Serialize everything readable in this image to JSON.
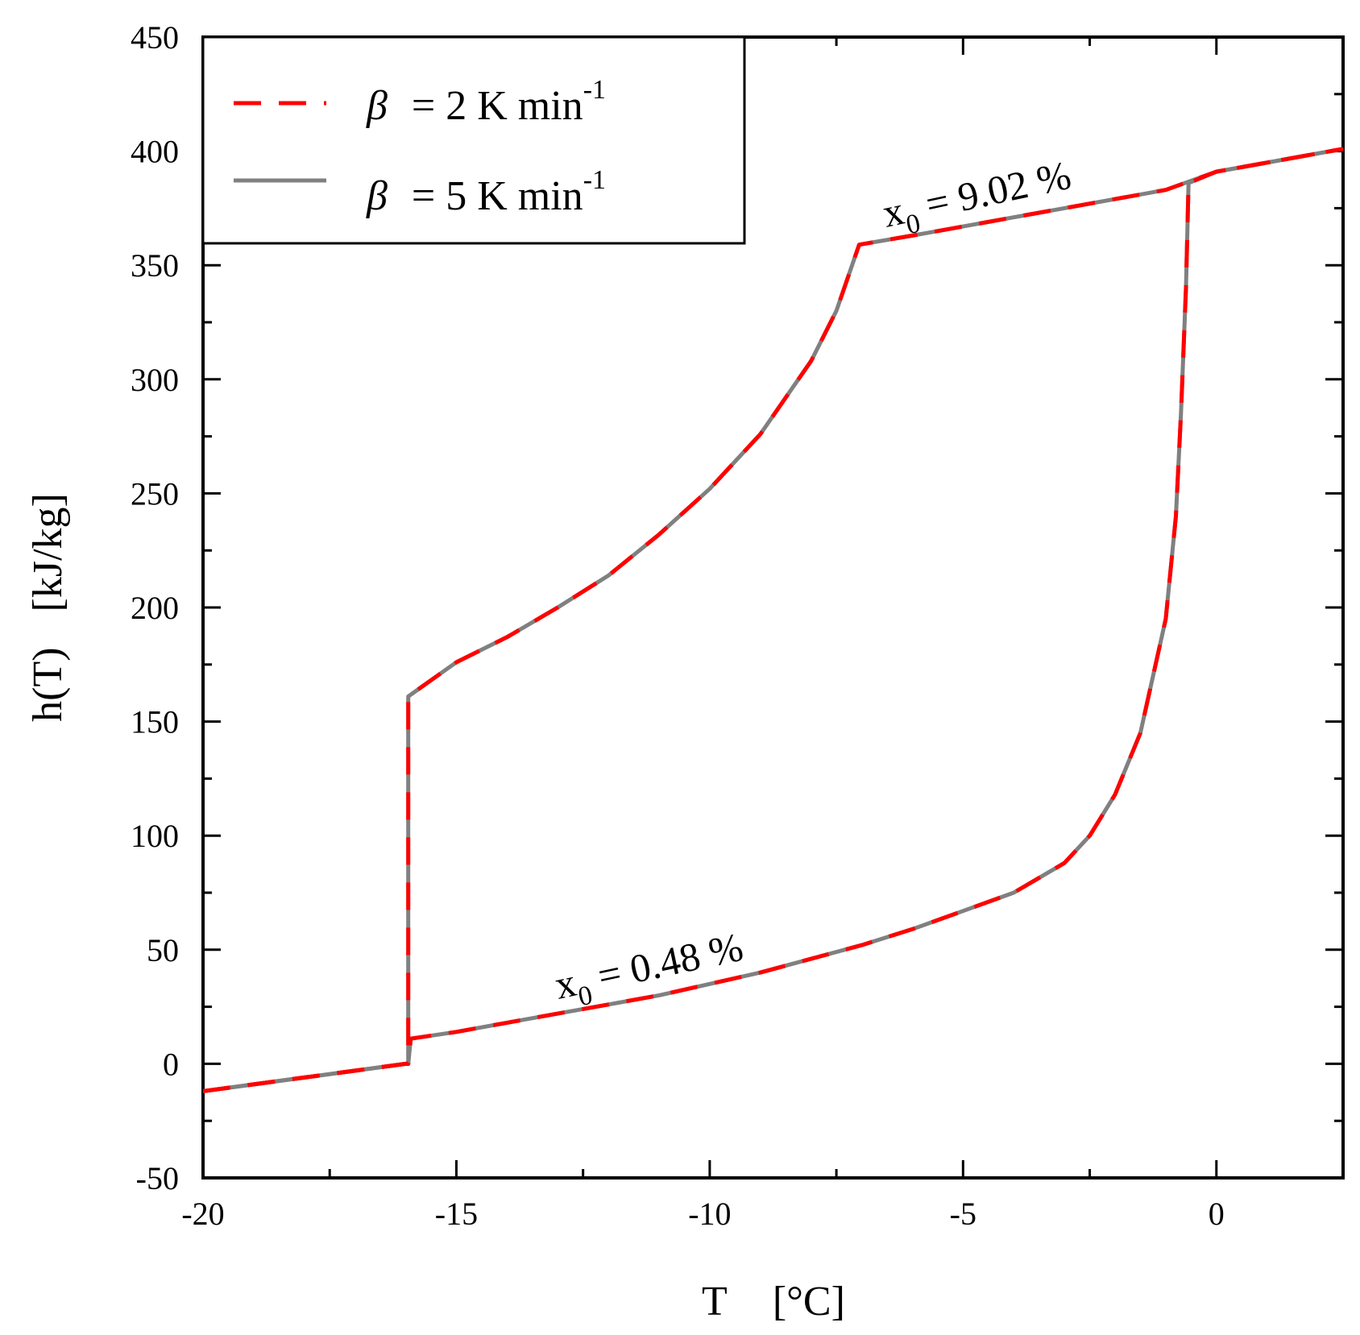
{
  "chart_data": {
    "type": "line",
    "title": "",
    "xlabel": "T",
    "xunit": "[°C]",
    "ylabel": "h(T)",
    "yunit": "[kJ/kg]",
    "xlim": [
      -20,
      2.5
    ],
    "ylim": [
      -50,
      450
    ],
    "xticks": [
      -20,
      -15,
      -10,
      -5,
      0
    ],
    "yticks": [
      -50,
      0,
      50,
      100,
      150,
      200,
      250,
      300,
      350,
      400,
      450
    ],
    "legend": {
      "position": "top-left",
      "entries": [
        {
          "symbol": "β",
          "text": "= 2 K min",
          "sup": "-1",
          "style": "dashed",
          "color": "#ff0000"
        },
        {
          "symbol": "β",
          "text": "= 5 K min",
          "sup": "-1",
          "style": "solid",
          "color": "#808080"
        }
      ]
    },
    "series": [
      {
        "name": "β = 2 K min-1, x0 = 9.02 %",
        "color": "#ff0000",
        "style": "dashed",
        "x": [
          -20,
          -16,
          -15.95,
          -15.95,
          -15,
          -14,
          -13,
          -12,
          -11,
          -10,
          -9,
          -8,
          -7.5,
          -7.05,
          -6,
          -5,
          -4,
          -3,
          -2,
          -1,
          0,
          1,
          2.5
        ],
        "y": [
          -12,
          0,
          0,
          161,
          176,
          187,
          200,
          214,
          232,
          252,
          276,
          308,
          330,
          359,
          363,
          367,
          371,
          375,
          379,
          383,
          391,
          395,
          401
        ]
      },
      {
        "name": "β = 5 K min-1, x0 = 9.02 %",
        "color": "#808080",
        "style": "solid",
        "x": [
          -20,
          -16,
          -15.95,
          -15.95,
          -15,
          -14,
          -13,
          -12,
          -11,
          -10,
          -9,
          -8,
          -7.5,
          -7.05,
          -6,
          -5,
          -4,
          -3,
          -2,
          -1,
          0,
          1,
          2.5
        ],
        "y": [
          -12,
          0,
          0,
          161,
          176,
          187,
          200,
          214,
          232,
          252,
          276,
          308,
          330,
          359,
          363,
          367,
          371,
          375,
          379,
          383,
          391,
          395,
          401
        ]
      },
      {
        "name": "β = 2 K min-1, x0 = 0.48 %",
        "color": "#ff0000",
        "style": "dashed",
        "x": [
          -20,
          -16,
          -15.95,
          -15.9,
          -15,
          -14,
          -13,
          -12,
          -11,
          -10,
          -9,
          -8,
          -7,
          -6,
          -5,
          -4,
          -3,
          -2.5,
          -2,
          -1.5,
          -1,
          -0.8,
          -0.7,
          -0.6,
          -0.55,
          0,
          1,
          2.5
        ],
        "y": [
          -12,
          0,
          0,
          11,
          14,
          18,
          22,
          26,
          30,
          35,
          40,
          46,
          52,
          59,
          67,
          75,
          88,
          100,
          118,
          145,
          195,
          240,
          285,
          340,
          386,
          391,
          395,
          401
        ]
      },
      {
        "name": "β = 5 K min-1, x0 = 0.48 %",
        "color": "#808080",
        "style": "solid",
        "x": [
          -20,
          -16,
          -15.95,
          -15.9,
          -15,
          -14,
          -13,
          -12,
          -11,
          -10,
          -9,
          -8,
          -7,
          -6,
          -5,
          -4,
          -3,
          -2.5,
          -2,
          -1.5,
          -1,
          -0.8,
          -0.7,
          -0.6,
          -0.55,
          0,
          1,
          2.5
        ],
        "y": [
          -12,
          0,
          0,
          11,
          14,
          18,
          22,
          26,
          30,
          35,
          40,
          46,
          52,
          59,
          67,
          75,
          88,
          100,
          118,
          145,
          195,
          240,
          285,
          340,
          386,
          391,
          395,
          401
        ]
      }
    ],
    "annotations": [
      {
        "text": "x",
        "sub": "0",
        "rest": " = 9.02 %",
        "at_x": -6.6,
        "at_y": 365
      },
      {
        "text": "x",
        "sub": "0",
        "rest": " = 0.48 %",
        "at_x": -13.1,
        "at_y": 24
      }
    ]
  }
}
